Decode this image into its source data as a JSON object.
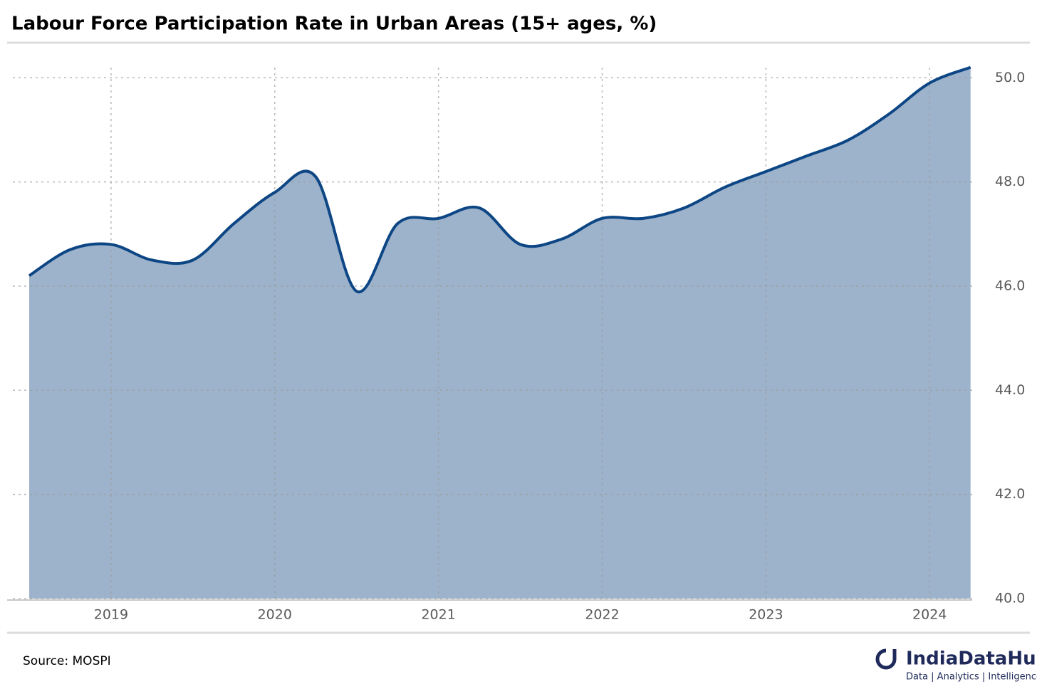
{
  "chart_data": {
    "type": "area",
    "title": "Labour Force Participation Rate in Urban Areas (15+ ages, %)",
    "x": [
      2018.5,
      2018.75,
      2019,
      2019.25,
      2019.5,
      2019.75,
      2020,
      2020.25,
      2020.5,
      2020.75,
      2021,
      2021.25,
      2021.5,
      2021.75,
      2022,
      2022.25,
      2022.5,
      2022.75,
      2023,
      2023.25,
      2023.5,
      2023.75,
      2024,
      2024.25
    ],
    "values": [
      46.2,
      46.7,
      46.8,
      46.5,
      46.5,
      47.2,
      47.8,
      48.1,
      45.9,
      47.2,
      47.3,
      47.5,
      46.8,
      46.9,
      47.3,
      47.3,
      47.5,
      47.9,
      48.2,
      48.5,
      48.8,
      49.3,
      49.9,
      50.2
    ],
    "color": "#0d4684",
    "fill": "#9db3cb",
    "xlim": [
      2018.4,
      2024.26
    ],
    "xticks": [
      2019,
      2020,
      2021,
      2022,
      2023,
      2024
    ],
    "ylim": [
      40,
      50.4
    ],
    "yticks": [
      {
        "value": 40,
        "label": "40.0"
      },
      {
        "value": 42,
        "label": "42.0"
      },
      {
        "value": 44,
        "label": "44.0"
      },
      {
        "value": 46,
        "label": "46.0"
      },
      {
        "value": 48,
        "label": "48.0"
      },
      {
        "value": 50,
        "label": "50.0"
      }
    ],
    "grid": true,
    "source": "Source: MOSPI",
    "brand": "IndiaDataHub",
    "tagline": "Data | Analytics | Intelligence"
  }
}
